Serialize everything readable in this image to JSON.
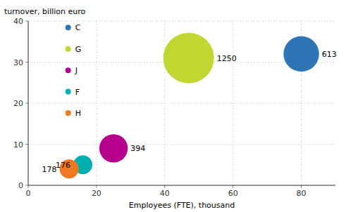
{
  "chart_data": {
    "type": "bubble",
    "xlabel": "Employees (FTE), thousand",
    "ylabel": "turnover, billion euro",
    "series": [
      {
        "name": "C",
        "color": "#2E75B6",
        "x": [
          80
        ],
        "values": [
          32
        ],
        "sizes": [
          613
        ]
      },
      {
        "name": "G",
        "color": "#BFD730",
        "x": [
          47
        ],
        "values": [
          31
        ],
        "sizes": [
          1250
        ]
      },
      {
        "name": "J",
        "color": "#B5008C",
        "x": [
          25
        ],
        "values": [
          9
        ],
        "sizes": [
          394
        ]
      },
      {
        "name": "F",
        "color": "#00B0B0",
        "x": [
          16
        ],
        "values": [
          5
        ],
        "sizes": [
          176
        ]
      },
      {
        "name": "H",
        "color": "#F07820",
        "x": [
          12
        ],
        "values": [
          4
        ],
        "sizes": [
          178
        ]
      }
    ],
    "xlim": [
      0,
      90
    ],
    "ylim": [
      0,
      40
    ],
    "xticks": [
      0,
      20,
      40,
      60,
      80
    ],
    "yticks": [
      0,
      10,
      20,
      30,
      40
    ],
    "grid": true,
    "legend": "upper left",
    "data_labels": true
  }
}
